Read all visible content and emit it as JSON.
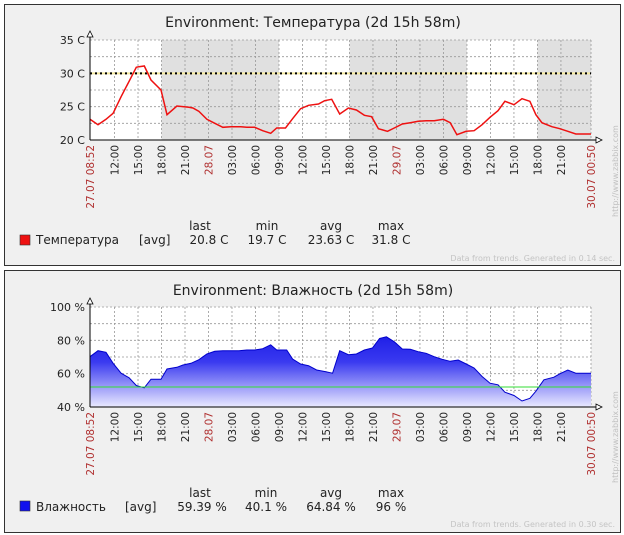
{
  "chart_data": [
    {
      "type": "line",
      "title": "Environment: Температура (2d 15h 58m)",
      "xlabel": "",
      "ylabel": "",
      "x_unit": "hours since 27.07 08:52",
      "xlim": [
        0,
        63.97
      ],
      "ylim": [
        20,
        35
      ],
      "yticks": [
        "20 C",
        "25 C",
        "30 C",
        "35 C"
      ],
      "ytick_values": [
        20,
        25,
        30,
        35
      ],
      "grid": true,
      "grid_y_step": 2.5,
      "night_shading_hours": [
        [
          9.13,
          24.13
        ],
        [
          33.13,
          48.13
        ],
        [
          57.13,
          63.97
        ]
      ],
      "trigger_line": 30,
      "xticks": [
        {
          "h": 0,
          "label": "27.07 08:52",
          "red": true
        },
        {
          "h": 3.13,
          "label": "12:00"
        },
        {
          "h": 6.13,
          "label": "15:00"
        },
        {
          "h": 9.13,
          "label": "18:00"
        },
        {
          "h": 12.13,
          "label": "21:00"
        },
        {
          "h": 15.13,
          "label": "28.07",
          "red": true
        },
        {
          "h": 18.13,
          "label": "03:00"
        },
        {
          "h": 21.13,
          "label": "06:00"
        },
        {
          "h": 24.13,
          "label": "09:00"
        },
        {
          "h": 27.13,
          "label": "12:00"
        },
        {
          "h": 30.13,
          "label": "15:00"
        },
        {
          "h": 33.13,
          "label": "18:00"
        },
        {
          "h": 36.13,
          "label": "21:00"
        },
        {
          "h": 39.13,
          "label": "29.07",
          "red": true
        },
        {
          "h": 42.13,
          "label": "03:00"
        },
        {
          "h": 45.13,
          "label": "06:00"
        },
        {
          "h": 48.13,
          "label": "09:00"
        },
        {
          "h": 51.13,
          "label": "12:00"
        },
        {
          "h": 54.13,
          "label": "15:00"
        },
        {
          "h": 57.13,
          "label": "18:00"
        },
        {
          "h": 60.13,
          "label": "21:00"
        },
        {
          "h": 63.97,
          "label": "30.07 00:50",
          "red": true
        }
      ],
      "series": [
        {
          "name": "Температура",
          "color": "#ee1111",
          "x": [
            0,
            1.02,
            2.04,
            2.95,
            3.97,
            4.99,
            5.91,
            6.26,
            6.93,
            7.79,
            9.07,
            9.83,
            11.1,
            12.63,
            13.14,
            13.9,
            14.92,
            15.94,
            16.96,
            17.98,
            19.25,
            20.02,
            21.03,
            22.05,
            23.07,
            23.84,
            24.96,
            25.87,
            26.89,
            27.91,
            29.18,
            29.95,
            30.86,
            31.88,
            33.0,
            34.02,
            35.04,
            35.96,
            36.82,
            37.99,
            38.86,
            39.88,
            40.9,
            41.91,
            42.93,
            43.95,
            45.12,
            45.99,
            46.85,
            48.03,
            49.04,
            50.06,
            51.08,
            52.1,
            52.97,
            54.14,
            55.16,
            56.17,
            56.94,
            57.7,
            58.98,
            59.99,
            61.01,
            62.03,
            63.97
          ],
          "y": [
            23.1,
            22.3,
            23.1,
            24.0,
            26.5,
            28.8,
            30.9,
            31.0,
            31.1,
            29.0,
            27.5,
            23.8,
            25.1,
            24.9,
            24.8,
            24.3,
            23.1,
            22.5,
            21.9,
            22.0,
            22.0,
            21.9,
            21.9,
            21.4,
            21.0,
            21.8,
            21.8,
            23.2,
            24.7,
            25.2,
            25.4,
            25.9,
            26.1,
            23.9,
            24.8,
            24.5,
            23.7,
            23.5,
            21.7,
            21.3,
            21.8,
            22.4,
            22.6,
            22.8,
            22.9,
            22.9,
            23.1,
            22.6,
            20.8,
            21.3,
            21.4,
            22.3,
            23.4,
            24.4,
            25.8,
            25.3,
            26.2,
            25.8,
            23.8,
            22.6,
            22.0,
            21.7,
            21.3,
            20.9,
            20.9
          ]
        }
      ],
      "legend": {
        "headers": [
          "last",
          "min",
          "avg",
          "max"
        ],
        "name": "Температура",
        "func": "[avg]",
        "last": "20.8 C",
        "min": "19.7 C",
        "avg": "23.63 C",
        "max": "31.8 C"
      },
      "footer": "Data from trends. Generated in 0.14 sec.",
      "watermark": "http://www.zabbix.com"
    },
    {
      "type": "area",
      "title": "Environment: Влажность (2d 15h 58m)",
      "xlabel": "",
      "ylabel": "",
      "x_unit": "hours since 27.07 08:52",
      "xlim": [
        0,
        63.97
      ],
      "ylim": [
        40,
        100
      ],
      "yticks": [
        "40 %",
        "60 %",
        "80 %",
        "100 %"
      ],
      "ytick_values": [
        40,
        60,
        80,
        100
      ],
      "grid": true,
      "grid_y_step": 10,
      "night_shading_hours": [],
      "trigger_line_green": 52,
      "xticks": [
        {
          "h": 0,
          "label": "27.07 08:52",
          "red": true
        },
        {
          "h": 3.13,
          "label": "12:00"
        },
        {
          "h": 6.13,
          "label": "15:00"
        },
        {
          "h": 9.13,
          "label": "18:00"
        },
        {
          "h": 12.13,
          "label": "21:00"
        },
        {
          "h": 15.13,
          "label": "28.07",
          "red": true
        },
        {
          "h": 18.13,
          "label": "03:00"
        },
        {
          "h": 21.13,
          "label": "06:00"
        },
        {
          "h": 24.13,
          "label": "09:00"
        },
        {
          "h": 27.13,
          "label": "12:00"
        },
        {
          "h": 30.13,
          "label": "15:00"
        },
        {
          "h": 33.13,
          "label": "18:00"
        },
        {
          "h": 36.13,
          "label": "21:00"
        },
        {
          "h": 39.13,
          "label": "29.07",
          "red": true
        },
        {
          "h": 42.13,
          "label": "03:00"
        },
        {
          "h": 45.13,
          "label": "06:00"
        },
        {
          "h": 48.13,
          "label": "09:00"
        },
        {
          "h": 51.13,
          "label": "12:00"
        },
        {
          "h": 54.13,
          "label": "15:00"
        },
        {
          "h": 57.13,
          "label": "18:00"
        },
        {
          "h": 60.13,
          "label": "21:00"
        },
        {
          "h": 63.97,
          "label": "30.07 00:50",
          "red": true
        }
      ],
      "series": [
        {
          "name": "Влажность",
          "color": "#1111ee",
          "x": [
            0,
            1.02,
            2.04,
            2.95,
            3.97,
            4.99,
            5.91,
            6.93,
            7.79,
            9.07,
            9.83,
            11.1,
            11.87,
            12.89,
            13.9,
            14.92,
            15.94,
            16.96,
            17.98,
            19.0,
            20.02,
            21.03,
            22.05,
            23.07,
            23.84,
            25.11,
            25.87,
            26.89,
            27.91,
            28.93,
            29.95,
            30.97,
            31.88,
            33.0,
            34.02,
            35.04,
            36.06,
            36.98,
            37.84,
            38.86,
            39.88,
            40.9,
            41.91,
            42.93,
            43.95,
            44.97,
            45.99,
            47.01,
            48.03,
            49.04,
            50.06,
            51.08,
            52.1,
            52.97,
            54.14,
            55.16,
            56.17,
            56.94,
            57.96,
            59.23,
            59.99,
            61.01,
            62.03,
            63.97
          ],
          "y": [
            70.2,
            73.8,
            72.8,
            66.2,
            60.3,
            57.5,
            52.9,
            51.5,
            56.7,
            56.7,
            62.8,
            63.8,
            65.2,
            66.2,
            68.4,
            71.8,
            73.4,
            73.8,
            73.8,
            73.8,
            74.2,
            74.2,
            75.0,
            77.3,
            74.2,
            74.2,
            68.8,
            65.8,
            64.8,
            62.2,
            61.3,
            60.3,
            73.8,
            71.4,
            71.8,
            74.2,
            75.4,
            81.1,
            82.1,
            79.1,
            74.8,
            74.6,
            73.2,
            72.2,
            70.2,
            68.6,
            67.4,
            68.2,
            65.8,
            63.4,
            58.3,
            54.3,
            53.3,
            48.9,
            46.9,
            43.6,
            45.2,
            49.5,
            56.3,
            57.9,
            59.9,
            62.2,
            60.3,
            60.3
          ]
        }
      ],
      "legend": {
        "headers": [
          "last",
          "min",
          "avg",
          "max"
        ],
        "name": "Влажность",
        "func": "[avg]",
        "last": "59.39 %",
        "min": "40.1 %",
        "avg": "64.84 %",
        "max": "96 %"
      },
      "footer": "Data from trends. Generated in 0.30 sec.",
      "watermark": "http://www.zabbix.com"
    }
  ]
}
